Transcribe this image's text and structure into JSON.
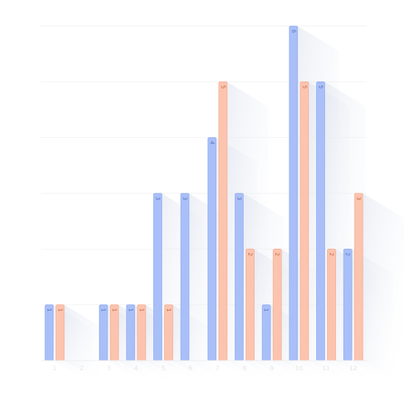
{
  "chart_data": {
    "type": "bar",
    "title": "",
    "xlabel": "",
    "ylabel": "",
    "categories": [
      "1",
      "2",
      "3",
      "4",
      "5",
      "6",
      "7",
      "8",
      "9",
      "10",
      "11",
      "12"
    ],
    "ylim": [
      0,
      6
    ],
    "grid": true,
    "legend": "none",
    "series": [
      {
        "values": [
          1,
          0,
          1,
          1,
          3,
          3,
          4,
          3,
          1,
          6,
          5,
          2
        ]
      },
      {
        "values": [
          1,
          0,
          1,
          1,
          1,
          0,
          5,
          2,
          2,
          5,
          2,
          3
        ]
      }
    ]
  },
  "colors": {
    "series_0": "#a9bff7",
    "series_0_stroke": "#8eaaf2",
    "series_0_text": "#5873c4",
    "series_1": "#fcc4ae",
    "series_1_stroke": "#f5a98c",
    "series_1_text": "#c0674a",
    "grid": "#f2f2f2",
    "axis": "#eeeeee"
  }
}
